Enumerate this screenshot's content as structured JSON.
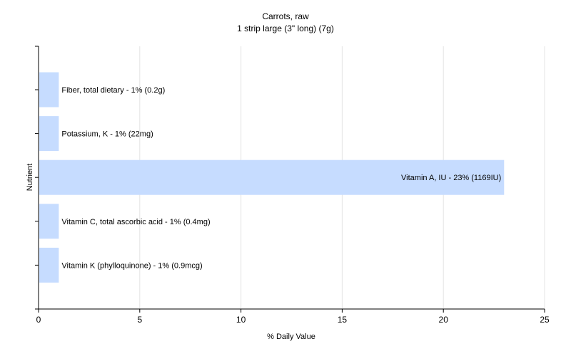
{
  "chart_data": {
    "type": "bar",
    "orientation": "horizontal",
    "title": "Carrots, raw",
    "subtitle": "1 strip large (3\" long) (7g)",
    "xlabel": "% Daily Value",
    "ylabel": "Nutrient",
    "xlim": [
      0,
      25
    ],
    "xticks": [
      0,
      5,
      10,
      15,
      20,
      25
    ],
    "grid": true,
    "legend": "none",
    "bar_color": "#c6dcff",
    "categories": [
      "Fiber, total dietary",
      "Potassium, K",
      "Vitamin A, IU",
      "Vitamin C, total ascorbic acid",
      "Vitamin K (phylloquinone)"
    ],
    "values": [
      1,
      1,
      23,
      1,
      1
    ],
    "labels": [
      "Fiber, total dietary - 1% (0.2g)",
      "Potassium, K - 1% (22mg)",
      "Vitamin A, IU - 23% (1169IU)",
      "Vitamin C, total ascorbic acid - 1% (0.4mg)",
      "Vitamin K (phylloquinone) - 1% (0.9mcg)"
    ]
  }
}
